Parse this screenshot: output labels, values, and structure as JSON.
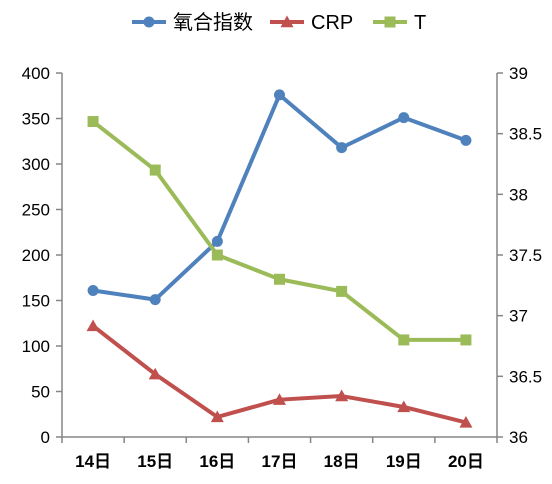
{
  "chart_data": {
    "type": "line",
    "categories": [
      "14日",
      "15日",
      "16日",
      "17日",
      "18日",
      "19日",
      "20日"
    ],
    "series": [
      {
        "name": "氧合指数",
        "axis": "left",
        "color": "#4F81BD",
        "marker": "circle",
        "values": [
          161,
          151,
          215,
          376,
          318,
          351,
          326
        ]
      },
      {
        "name": "CRP",
        "axis": "left",
        "color": "#C0504D",
        "marker": "triangle",
        "values": [
          122,
          69,
          22,
          41,
          45,
          33,
          16
        ]
      },
      {
        "name": "T",
        "axis": "right",
        "color": "#9BBB59",
        "marker": "square",
        "values": [
          38.6,
          38.2,
          37.5,
          37.3,
          37.2,
          36.8,
          36.8
        ]
      }
    ],
    "y_left": {
      "min": 0,
      "max": 400,
      "ticks": [
        0,
        50,
        100,
        150,
        200,
        250,
        300,
        350,
        400
      ],
      "tick_labels": [
        "0",
        "50",
        "100",
        "150",
        "200",
        "250",
        "300",
        "350",
        "400"
      ]
    },
    "y_right": {
      "min": 36,
      "max": 39,
      "ticks": [
        36,
        36.5,
        37,
        37.5,
        38,
        38.5,
        39
      ],
      "tick_labels": [
        "36",
        "36.5",
        "37",
        "37.5",
        "38",
        "38.5",
        "39"
      ]
    },
    "grid": false,
    "legend_position": "top",
    "axis_color": "#868686"
  }
}
